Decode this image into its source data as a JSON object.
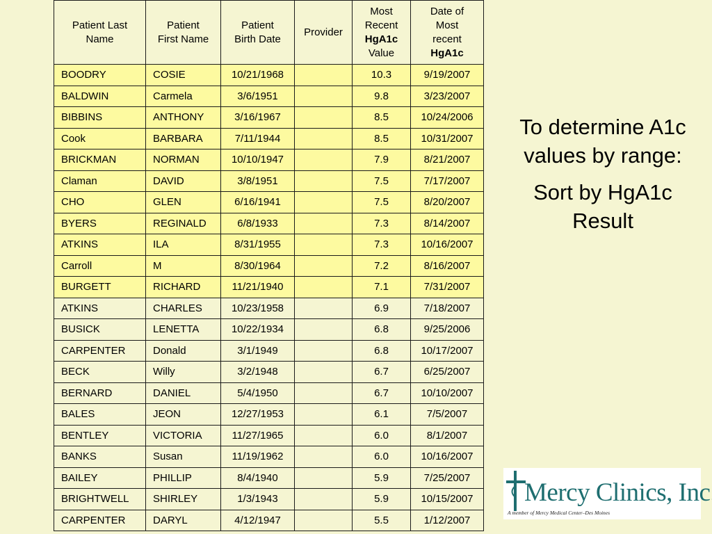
{
  "table": {
    "headers": {
      "last_name": [
        "Patient Last",
        "Name"
      ],
      "first_name": [
        "Patient",
        "First Name"
      ],
      "birth_date": [
        "Patient",
        "Birth Date"
      ],
      "provider": [
        "Provider"
      ],
      "hga1c_value": [
        "Most",
        "Recent",
        "HgA1c",
        "Value"
      ],
      "hga1c_date": [
        "Date of",
        "Most",
        "recent",
        "HgA1c"
      ]
    },
    "rows": [
      {
        "last": "BOODRY",
        "first": "COSIE",
        "birth": "10/21/1968",
        "provider": "",
        "value": "10.3",
        "date": "9/19/2007",
        "highlight": true
      },
      {
        "last": "BALDWIN",
        "first": "Carmela",
        "birth": "3/6/1951",
        "provider": "",
        "value": "9.8",
        "date": "3/23/2007",
        "highlight": true
      },
      {
        "last": "BIBBINS",
        "first": "ANTHONY",
        "birth": "3/16/1967",
        "provider": "",
        "value": "8.5",
        "date": "10/24/2006",
        "highlight": true
      },
      {
        "last": "Cook",
        "first": "BARBARA",
        "birth": "7/11/1944",
        "provider": "",
        "value": "8.5",
        "date": "10/31/2007",
        "highlight": true
      },
      {
        "last": "BRICKMAN",
        "first": "NORMAN",
        "birth": "10/10/1947",
        "provider": "",
        "value": "7.9",
        "date": "8/21/2007",
        "highlight": true
      },
      {
        "last": "Claman",
        "first": "DAVID",
        "birth": "3/8/1951",
        "provider": "",
        "value": "7.5",
        "date": "7/17/2007",
        "highlight": true
      },
      {
        "last": "CHO",
        "first": "GLEN",
        "birth": "6/16/1941",
        "provider": "",
        "value": "7.5",
        "date": "8/20/2007",
        "highlight": true
      },
      {
        "last": "BYERS",
        "first": "REGINALD",
        "birth": "6/8/1933",
        "provider": "",
        "value": "7.3",
        "date": "8/14/2007",
        "highlight": true
      },
      {
        "last": "ATKINS",
        "first": "ILA",
        "birth": "8/31/1955",
        "provider": "",
        "value": "7.3",
        "date": "10/16/2007",
        "highlight": true
      },
      {
        "last": "Carroll",
        "first": "M",
        "birth": "8/30/1964",
        "provider": "",
        "value": "7.2",
        "date": "8/16/2007",
        "highlight": true
      },
      {
        "last": "BURGETT",
        "first": "RICHARD",
        "birth": "11/21/1940",
        "provider": "",
        "value": "7.1",
        "date": "7/31/2007",
        "highlight": true
      },
      {
        "last": "ATKINS",
        "first": "CHARLES",
        "birth": "10/23/1958",
        "provider": "",
        "value": "6.9",
        "date": "7/18/2007",
        "highlight": false
      },
      {
        "last": "BUSICK",
        "first": "LENETTA",
        "birth": "10/22/1934",
        "provider": "",
        "value": "6.8",
        "date": "9/25/2006",
        "highlight": false
      },
      {
        "last": "CARPENTER",
        "first": "Donald",
        "birth": "3/1/1949",
        "provider": "",
        "value": "6.8",
        "date": "10/17/2007",
        "highlight": false
      },
      {
        "last": "BECK",
        "first": "Willy",
        "birth": "3/2/1948",
        "provider": "",
        "value": "6.7",
        "date": "6/25/2007",
        "highlight": false
      },
      {
        "last": "BERNARD",
        "first": "DANIEL",
        "birth": "5/4/1950",
        "provider": "",
        "value": "6.7",
        "date": "10/10/2007",
        "highlight": false
      },
      {
        "last": "BALES",
        "first": "JEON",
        "birth": "12/27/1953",
        "provider": "",
        "value": "6.1",
        "date": "7/5/2007",
        "highlight": false
      },
      {
        "last": "BENTLEY",
        "first": "VICTORIA",
        "birth": "11/27/1965",
        "provider": "",
        "value": "6.0",
        "date": "8/1/2007",
        "highlight": false
      },
      {
        "last": "BANKS",
        "first": "Susan",
        "birth": "11/19/1962",
        "provider": "",
        "value": "6.0",
        "date": "10/16/2007",
        "highlight": false
      },
      {
        "last": "BAILEY",
        "first": "PHILLIP",
        "birth": "8/4/1940",
        "provider": "",
        "value": "5.9",
        "date": "7/25/2007",
        "highlight": false
      },
      {
        "last": "BRIGHTWELL",
        "first": "SHIRLEY",
        "birth": "1/3/1943",
        "provider": "",
        "value": "5.9",
        "date": "10/15/2007",
        "highlight": false
      },
      {
        "last": "CARPENTER",
        "first": "DARYL",
        "birth": "4/12/1947",
        "provider": "",
        "value": "5.5",
        "date": "1/12/2007",
        "highlight": false
      }
    ]
  },
  "side_note": {
    "line1": "To determine A1c values by range:",
    "line2": "Sort by HgA1c Result"
  },
  "logo": {
    "name": "Mercy Clinics, Inc.",
    "tagline": "A member of Mercy Medical Center–Des Moines",
    "icon": "cross-icon"
  },
  "colors": {
    "background": "#f5f5d2",
    "highlight_row": "#fdfaa0",
    "logo_text": "#1e6e70"
  }
}
